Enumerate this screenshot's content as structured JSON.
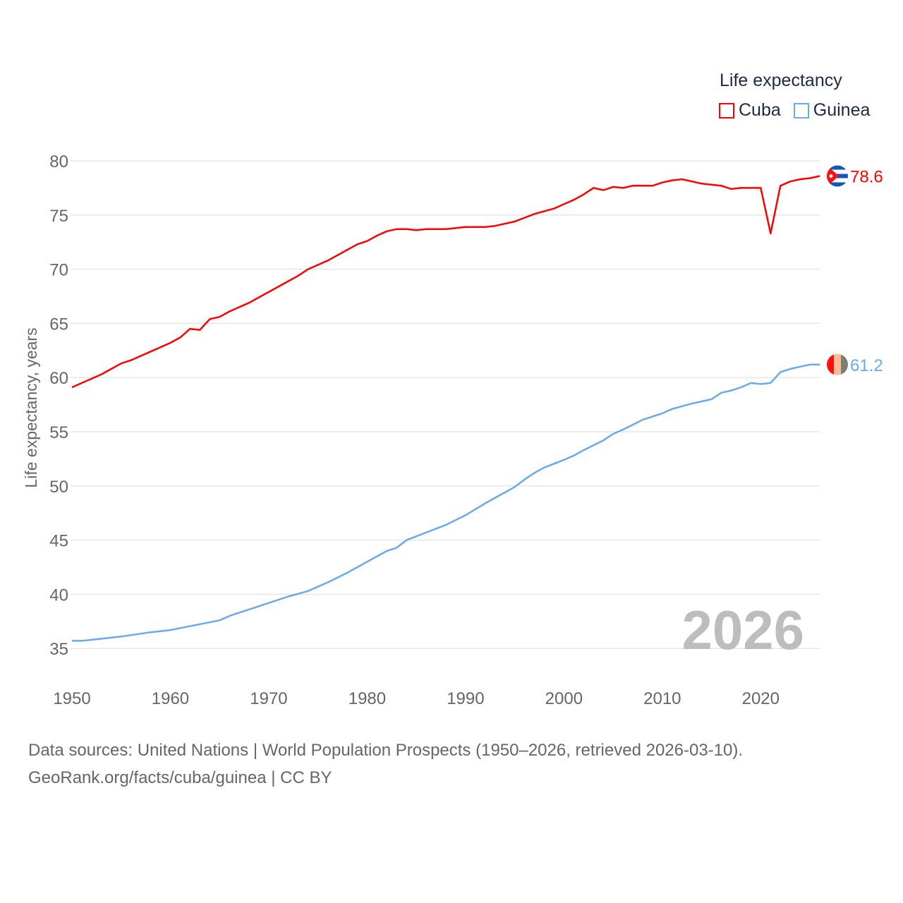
{
  "chart_data": {
    "type": "line",
    "title": "",
    "legend_title": "Life expectancy",
    "legend_placement": "top-right",
    "xlabel": "",
    "ylabel": "Life expectancy, years",
    "xlim": [
      1950,
      2026
    ],
    "ylim": [
      32.5,
      80
    ],
    "x_ticks": [
      "1950",
      "1960",
      "1970",
      "1980",
      "1990",
      "2000",
      "2010",
      "2020"
    ],
    "y_ticks": [
      "35",
      "40",
      "45",
      "50",
      "55",
      "60",
      "65",
      "70",
      "75",
      "80"
    ],
    "grid": true,
    "year_label": "2026",
    "series": [
      {
        "name": "Cuba",
        "color": "#ff0000",
        "end_label": "78.6",
        "flag": "cuba-flag",
        "x": [
          1950,
          1953,
          1955,
          1956,
          1958,
          1960,
          1961,
          1962,
          1963,
          1964,
          1965,
          1966,
          1968,
          1970,
          1972,
          1973,
          1974,
          1976,
          1978,
          1979,
          1980,
          1981,
          1982,
          1983,
          1984,
          1985,
          1986,
          1988,
          1989,
          1990,
          1992,
          1993,
          1995,
          1997,
          1999,
          2000,
          2001,
          2002,
          2003,
          2004,
          2005,
          2006,
          2007,
          2009,
          2010,
          2011,
          2012,
          2013,
          2014,
          2016,
          2017,
          2018,
          2020,
          2021,
          2022,
          2023,
          2024,
          2025,
          2026
        ],
        "y": [
          59.1,
          60.3,
          61.3,
          61.6,
          62.4,
          63.2,
          63.7,
          64.5,
          64.4,
          65.4,
          65.6,
          66.1,
          66.9,
          67.9,
          68.9,
          69.4,
          70.0,
          70.8,
          71.8,
          72.3,
          72.6,
          73.1,
          73.5,
          73.7,
          73.7,
          73.6,
          73.7,
          73.7,
          73.8,
          73.9,
          73.9,
          74.0,
          74.4,
          75.1,
          75.6,
          76.0,
          76.4,
          76.9,
          77.5,
          77.3,
          77.6,
          77.5,
          77.7,
          77.7,
          78.0,
          78.2,
          78.3,
          78.1,
          77.9,
          77.7,
          77.4,
          77.5,
          77.5,
          73.3,
          77.7,
          78.1,
          78.3,
          78.4,
          78.6
        ]
      },
      {
        "name": "Guinea",
        "color": "#6aaaea",
        "end_label": "61.2",
        "flag": "guinea-flag",
        "x": [
          1950,
          1951,
          1955,
          1958,
          1960,
          1965,
          1966,
          1970,
          1972,
          1974,
          1976,
          1978,
          1980,
          1982,
          1983,
          1984,
          1986,
          1988,
          1990,
          1992,
          1994,
          1995,
          1996,
          1997,
          1998,
          2000,
          2001,
          2002,
          2004,
          2005,
          2006,
          2008,
          2010,
          2011,
          2013,
          2015,
          2016,
          2017,
          2018,
          2019,
          2020,
          2021,
          2022,
          2023,
          2024,
          2025,
          2026
        ],
        "y": [
          35.7,
          35.7,
          36.1,
          36.5,
          36.7,
          37.6,
          38.0,
          39.2,
          39.8,
          40.3,
          41.1,
          42.0,
          43.0,
          44.0,
          44.3,
          45.0,
          45.7,
          46.4,
          47.3,
          48.4,
          49.4,
          49.9,
          50.6,
          51.2,
          51.7,
          52.4,
          52.8,
          53.3,
          54.2,
          54.8,
          55.2,
          56.1,
          56.7,
          57.1,
          57.6,
          58.0,
          58.6,
          58.8,
          59.1,
          59.5,
          59.4,
          59.5,
          60.5,
          60.8,
          61.0,
          61.2,
          61.2
        ]
      }
    ]
  },
  "source": {
    "line1": "Data sources: United Nations | World Population Prospects (1950–2026, retrieved 2026-03-10).",
    "line2": "GeoRank.org/facts/cuba/guinea | CC BY"
  }
}
